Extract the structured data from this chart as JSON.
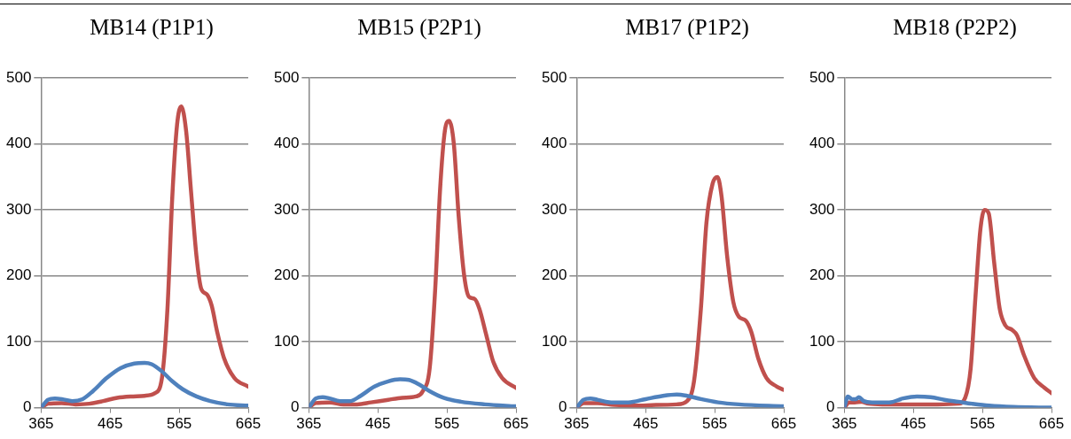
{
  "chart_data": [
    {
      "type": "line",
      "title": "MB14 (P1P1)",
      "xlim": [
        365,
        665
      ],
      "xticks": [
        365,
        465,
        565,
        665
      ],
      "ylim": [
        0,
        500
      ],
      "yticks": [
        0,
        100,
        200,
        300,
        400,
        500
      ],
      "grid": "y",
      "marker": "none",
      "line_style": "solid",
      "series": [
        {
          "color": "#4f81bd",
          "x": [
            365,
            375,
            385,
            395,
            410,
            425,
            440,
            460,
            480,
            500,
            515,
            525,
            540,
            555,
            570,
            590,
            610,
            635,
            665
          ],
          "values": [
            0,
            12,
            14,
            13,
            10,
            13,
            25,
            45,
            60,
            67,
            68,
            66,
            55,
            40,
            28,
            17,
            10,
            5,
            3
          ]
        },
        {
          "color": "#c0504d",
          "x": [
            365,
            375,
            395,
            415,
            435,
            455,
            475,
            495,
            515,
            530,
            540,
            548,
            555,
            562,
            568,
            575,
            582,
            590,
            597,
            605,
            612,
            620,
            630,
            645,
            665
          ],
          "values": [
            0,
            6,
            7,
            5,
            6,
            10,
            15,
            17,
            18,
            22,
            45,
            150,
            320,
            430,
            457,
            420,
            330,
            230,
            180,
            172,
            155,
            115,
            75,
            45,
            32
          ]
        }
      ]
    },
    {
      "type": "line",
      "title": "MB15 (P2P1)",
      "xlim": [
        365,
        665
      ],
      "xticks": [
        365,
        465,
        565,
        665
      ],
      "ylim": [
        0,
        500
      ],
      "yticks": [
        0,
        100,
        200,
        300,
        400,
        500
      ],
      "grid": "y",
      "marker": "none",
      "line_style": "solid",
      "series": [
        {
          "color": "#4f81bd",
          "x": [
            365,
            375,
            385,
            395,
            410,
            425,
            440,
            460,
            480,
            497,
            510,
            525,
            540,
            560,
            585,
            620,
            665
          ],
          "values": [
            0,
            14,
            16,
            14,
            10,
            10,
            18,
            32,
            40,
            43,
            42,
            35,
            25,
            15,
            9,
            5,
            2
          ]
        },
        {
          "color": "#c0504d",
          "x": [
            365,
            375,
            395,
            415,
            435,
            455,
            480,
            500,
            520,
            530,
            540,
            548,
            555,
            562,
            568,
            575,
            582,
            590,
            597,
            605,
            612,
            622,
            632,
            645,
            665
          ],
          "values": [
            0,
            7,
            8,
            5,
            5,
            8,
            12,
            15,
            17,
            25,
            60,
            180,
            330,
            420,
            435,
            400,
            290,
            200,
            168,
            165,
            150,
            110,
            70,
            45,
            30
          ]
        }
      ]
    },
    {
      "type": "line",
      "title": "MB17 (P1P2)",
      "xlim": [
        365,
        665
      ],
      "xticks": [
        365,
        465,
        565,
        665
      ],
      "ylim": [
        0,
        500
      ],
      "yticks": [
        0,
        100,
        200,
        300,
        400,
        500
      ],
      "grid": "y",
      "marker": "none",
      "line_style": "solid",
      "series": [
        {
          "color": "#4f81bd",
          "x": [
            365,
            375,
            385,
            395,
            415,
            440,
            465,
            490,
            510,
            525,
            545,
            570,
            600,
            665
          ],
          "values": [
            0,
            12,
            14,
            12,
            8,
            8,
            13,
            18,
            20,
            18,
            13,
            8,
            5,
            2
          ]
        },
        {
          "color": "#c0504d",
          "x": [
            365,
            375,
            395,
            420,
            450,
            480,
            510,
            525,
            535,
            545,
            553,
            562,
            569,
            575,
            583,
            592,
            600,
            610,
            618,
            628,
            640,
            655,
            665
          ],
          "values": [
            0,
            7,
            7,
            4,
            3,
            4,
            5,
            10,
            40,
            150,
            280,
            340,
            350,
            320,
            230,
            160,
            138,
            132,
            115,
            75,
            45,
            32,
            27
          ]
        }
      ]
    },
    {
      "type": "line",
      "title": "MB18 (P2P2)",
      "xlim": [
        365,
        665
      ],
      "xticks": [
        365,
        465,
        565,
        665
      ],
      "ylim": [
        0,
        500
      ],
      "yticks": [
        0,
        100,
        200,
        300,
        400,
        500
      ],
      "grid": "y",
      "marker": "none",
      "line_style": "solid",
      "series": [
        {
          "color": "#4f81bd",
          "x": [
            365,
            370,
            376,
            382,
            386,
            393,
            405,
            430,
            450,
            470,
            490,
            510,
            530,
            550,
            575,
            610,
            665
          ],
          "values": [
            0,
            17,
            13,
            13,
            16,
            10,
            8,
            8,
            14,
            17,
            16,
            12,
            9,
            6,
            3,
            1,
            0
          ]
        },
        {
          "color": "#c0504d",
          "x": [
            365,
            372,
            380,
            390,
            400,
            420,
            460,
            500,
            530,
            540,
            548,
            555,
            562,
            568,
            574,
            582,
            590,
            598,
            608,
            615,
            625,
            640,
            655,
            665
          ],
          "values": [
            0,
            8,
            8,
            9,
            6,
            5,
            5,
            5,
            6,
            15,
            60,
            170,
            270,
            300,
            295,
            220,
            150,
            125,
            118,
            110,
            80,
            45,
            30,
            22
          ]
        }
      ]
    }
  ]
}
